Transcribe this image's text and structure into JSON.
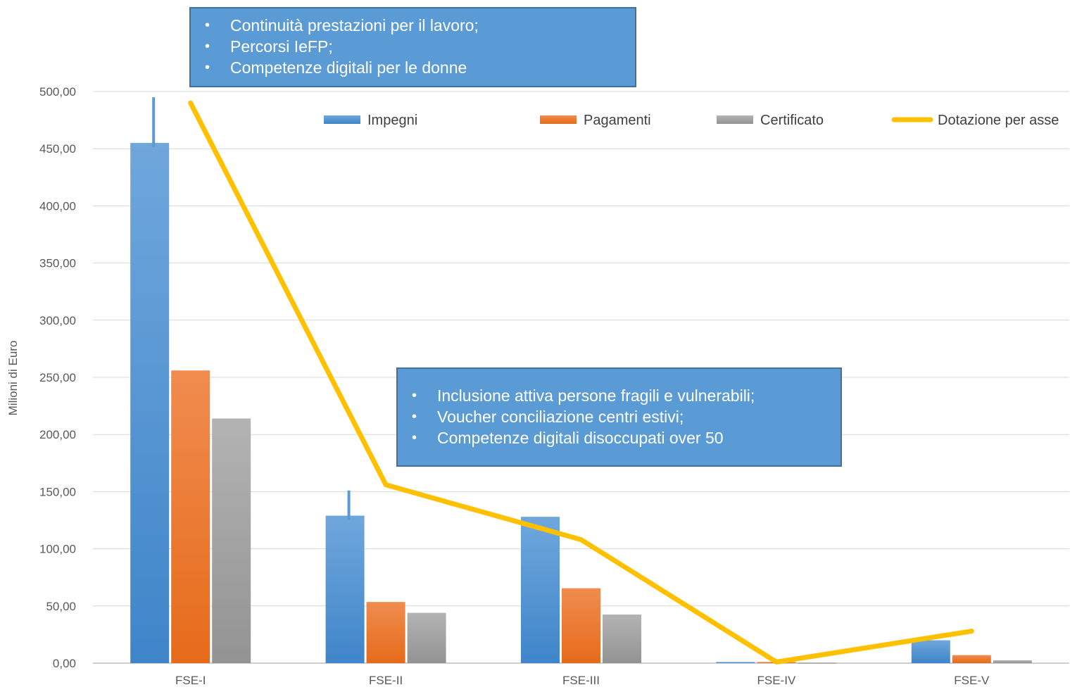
{
  "chart_data": {
    "type": "bar",
    "categories": [
      "FSE-I",
      "FSE-II",
      "FSE-III",
      "FSE-IV",
      "FSE-V"
    ],
    "series": [
      {
        "name": "Impegni",
        "kind": "bar",
        "color": "#5b9bd5",
        "values": [
          455,
          129,
          128,
          1,
          20
        ],
        "error_top": [
          495,
          151,
          null,
          null,
          null
        ]
      },
      {
        "name": "Pagamenti",
        "kind": "bar",
        "color": "#ed7d31",
        "values": [
          256,
          53.5,
          65.5,
          1,
          7
        ]
      },
      {
        "name": "Certificato",
        "kind": "bar",
        "color": "#a5a5a5",
        "values": [
          214,
          44,
          42.5,
          0.5,
          2.5
        ]
      },
      {
        "name": "Dotazione per asse",
        "kind": "line",
        "color": "#ffc000",
        "values": [
          490,
          156,
          108,
          1,
          28
        ]
      }
    ],
    "ylabel": "Milioni di Euro",
    "ylim": [
      0,
      500
    ],
    "yticks": [
      "0,00",
      "50,00",
      "100,00",
      "150,00",
      "200,00",
      "250,00",
      "300,00",
      "350,00",
      "400,00",
      "450,00",
      "500,00"
    ],
    "grid": true,
    "legend_position": "top-right"
  },
  "callouts": {
    "top": [
      "Continuità prestazioni per il lavoro;",
      "Percorsi IeFP;",
      "Competenze digitali per le donne"
    ],
    "middle": [
      "Inclusione attiva persone fragili e vulnerabili;",
      "Voucher conciliazione centri estivi;",
      "Competenze digitali disoccupati over 50"
    ]
  }
}
